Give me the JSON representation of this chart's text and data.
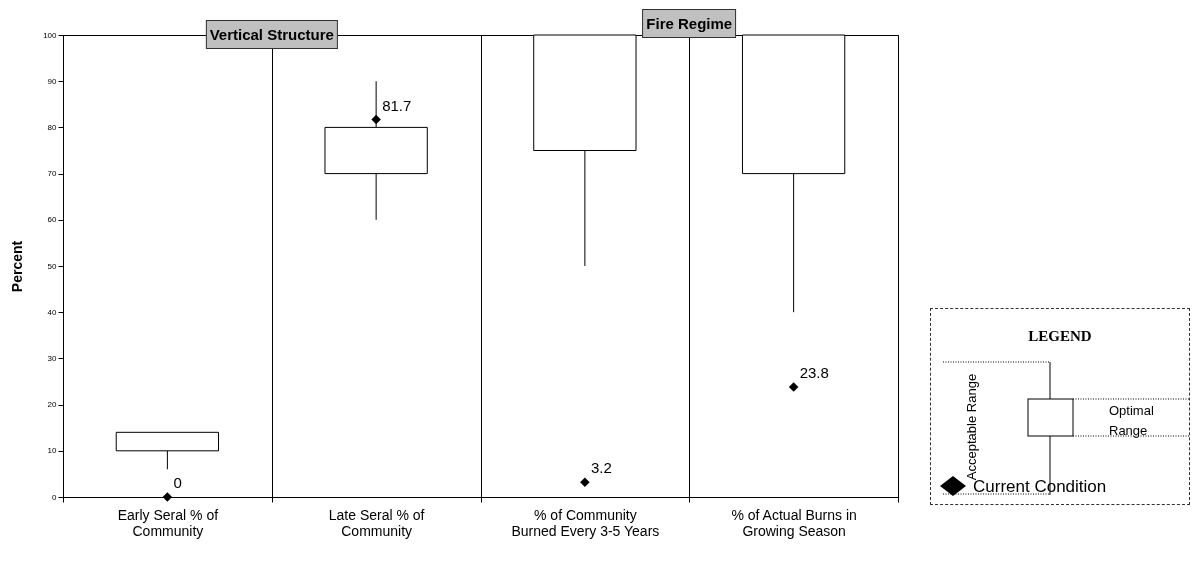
{
  "chart_data": {
    "type": "box",
    "categories": [
      "Early Seral % of Community",
      "Late Seral % of Community",
      "% of Community Burned Every 3-5 Years",
      "% of Actual Burns in Growing Season"
    ],
    "ylabel": "Percent",
    "ylim": [
      0,
      100
    ],
    "yticks": [
      0,
      10,
      20,
      30,
      40,
      50,
      60,
      70,
      80,
      90,
      100
    ],
    "boxes": [
      {
        "low": 6,
        "q1": 10,
        "q3": 14,
        "high": 14
      },
      {
        "low": 60,
        "q1": 70,
        "q3": 80,
        "high": 90
      },
      {
        "low": 50,
        "q1": 75,
        "q3": 100,
        "high": 100
      },
      {
        "low": 40,
        "q1": 70,
        "q3": 100,
        "high": 100
      }
    ],
    "series": [
      {
        "name": "Current Condition",
        "type": "scatter",
        "color": "#000000",
        "x": [
          "Early Seral % of Community",
          "Late Seral % of Community",
          "% of Community Burned Every 3-5 Years",
          "% of Actual Burns in Growing Season"
        ],
        "values": [
          0,
          81.7,
          3.2,
          23.8
        ]
      }
    ],
    "marker": "diamond",
    "data_labels": true,
    "grid": "x",
    "legend": "right",
    "legend_title": "LEGEND",
    "annotations": [
      "Vertical Structure",
      "Fire Regime",
      "Acceptable Range",
      "Optimal Range"
    ]
  }
}
